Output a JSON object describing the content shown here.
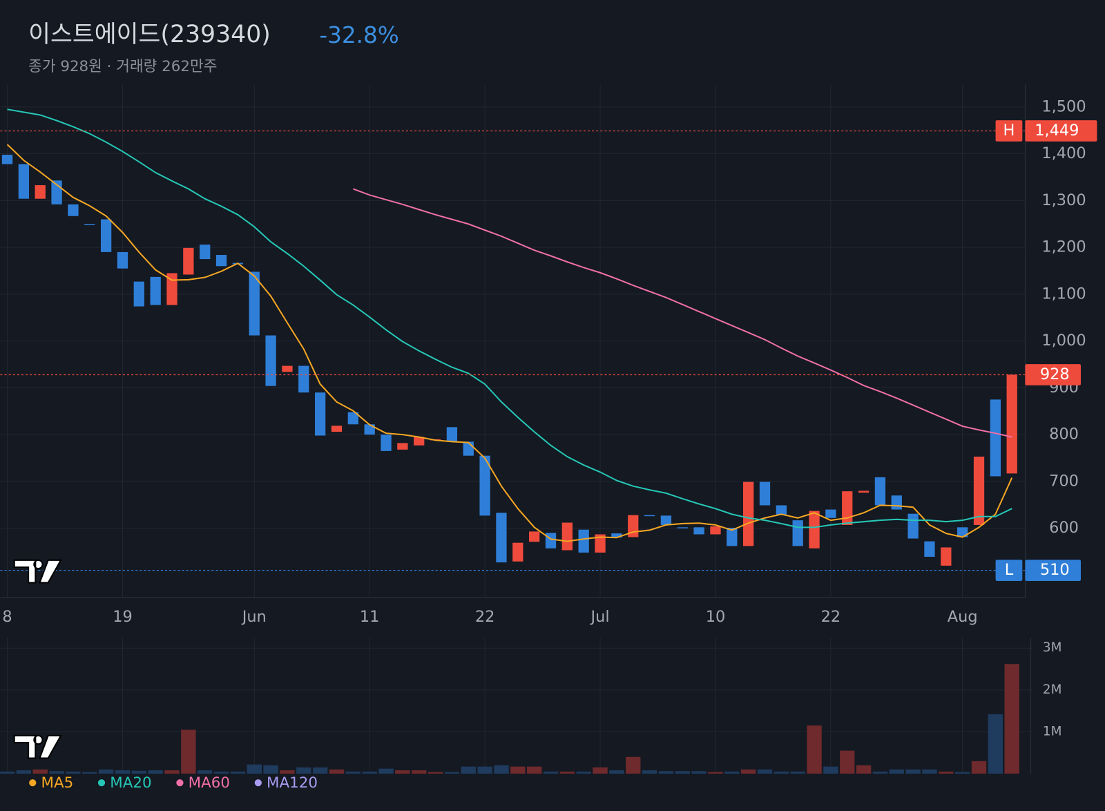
{
  "header": {
    "title": "이스트에이드(239340)",
    "change": "-32.8%",
    "subtitle": "종가 928원 · 거래량 262만주"
  },
  "chart_data": {
    "type": "candlestick",
    "categories": [
      "8",
      null,
      null,
      null,
      null,
      null,
      null,
      "19",
      null,
      null,
      null,
      null,
      null,
      null,
      null,
      "Jun",
      null,
      null,
      null,
      null,
      null,
      null,
      "11",
      null,
      null,
      null,
      null,
      null,
      null,
      "22",
      null,
      null,
      null,
      null,
      null,
      null,
      "Jul",
      null,
      null,
      null,
      null,
      null,
      null,
      "10",
      null,
      null,
      null,
      null,
      null,
      null,
      "22",
      null,
      null,
      null,
      null,
      null,
      null,
      null,
      "Aug",
      null,
      null,
      null
    ],
    "open": [
      1398,
      1378,
      1304,
      1343,
      1292,
      1250,
      1260,
      1190,
      1127,
      1137,
      1077,
      1142,
      1206,
      1184,
      1167,
      1148,
      1012,
      934,
      947,
      890,
      806,
      848,
      822,
      800,
      768,
      777,
      788,
      816,
      785,
      755,
      633,
      529,
      571,
      590,
      553,
      597,
      548,
      589,
      581,
      628,
      627,
      602,
      602,
      587,
      601,
      562,
      699,
      649,
      617,
      557,
      640,
      607,
      676,
      709,
      670,
      631,
      572,
      520,
      602,
      607,
      875,
      717
    ],
    "high": {
      "tag": "H",
      "value": 1449,
      "label": "1,449"
    },
    "low": {
      "tag": "L",
      "value": 510
    },
    "close": [
      1378,
      1304,
      1333,
      1292,
      1267,
      1248,
      1190,
      1155,
      1074,
      1077,
      1145,
      1199,
      1175,
      1160,
      1164,
      1012,
      904,
      947,
      890,
      798,
      819,
      822,
      800,
      765,
      782,
      795,
      790,
      785,
      755,
      627,
      527,
      569,
      593,
      557,
      612,
      548,
      587,
      580,
      628,
      626,
      607,
      601,
      587,
      604,
      562,
      699,
      649,
      628,
      562,
      637,
      622,
      679,
      680,
      649,
      640,
      578,
      539,
      559,
      581,
      753,
      711,
      928
    ],
    "volume": [
      50000,
      80000,
      100000,
      60000,
      50000,
      40000,
      100000,
      80000,
      70000,
      80000,
      80000,
      1050000,
      80000,
      50000,
      50000,
      220000,
      200000,
      80000,
      150000,
      150000,
      100000,
      50000,
      50000,
      120000,
      80000,
      80000,
      40000,
      40000,
      170000,
      170000,
      200000,
      170000,
      170000,
      50000,
      50000,
      50000,
      150000,
      80000,
      400000,
      80000,
      60000,
      60000,
      60000,
      40000,
      50000,
      100000,
      100000,
      50000,
      50000,
      1150000,
      170000,
      550000,
      200000,
      50000,
      100000,
      100000,
      100000,
      50000,
      40000,
      300000,
      1420000,
      2620000
    ],
    "up_color": "#ef4b3c",
    "down_color": "#2f7fd8",
    "up_volume_color": "#6e2a2c",
    "down_volume_color": "#1f3b5e",
    "series": [
      {
        "name": "MA5",
        "color": "#f5a623",
        "values": [
          1420,
          1386,
          1361,
          1334,
          1307,
          1289,
          1267,
          1232,
          1190,
          1152,
          1130,
          1131,
          1136,
          1149,
          1166,
          1139,
          1096,
          1039,
          983,
          908,
          870,
          851,
          821,
          803,
          800,
          795,
          788,
          785,
          783,
          750,
          690,
          642,
          602,
          577,
          572,
          577,
          581,
          580,
          592,
          596,
          607,
          610,
          611,
          607,
          596,
          611,
          622,
          630,
          622,
          633,
          617,
          622,
          633,
          649,
          648,
          645,
          607,
          589,
          581,
          602,
          630,
          708
        ]
      },
      {
        "name": "MA20",
        "color": "#26c6b5",
        "values": [
          1495,
          1489,
          1483,
          1471,
          1458,
          1443,
          1425,
          1405,
          1383,
          1360,
          1342,
          1325,
          1304,
          1288,
          1270,
          1244,
          1212,
          1187,
          1160,
          1130,
          1099,
          1077,
          1051,
          1024,
          999,
          979,
          961,
          944,
          931,
          908,
          870,
          837,
          806,
          777,
          753,
          735,
          720,
          702,
          690,
          682,
          675,
          663,
          652,
          642,
          630,
          622,
          617,
          610,
          602,
          602,
          607,
          611,
          614,
          617,
          619,
          617,
          617,
          614,
          617,
          625,
          625,
          642
        ]
      },
      {
        "name": "MA60",
        "color": "#f06fa8",
        "values": [
          null,
          null,
          null,
          null,
          null,
          null,
          null,
          null,
          null,
          null,
          null,
          null,
          null,
          null,
          null,
          null,
          null,
          null,
          null,
          null,
          null,
          1325,
          1312,
          1302,
          1292,
          1281,
          1270,
          1260,
          1250,
          1237,
          1224,
          1209,
          1194,
          1182,
          1169,
          1157,
          1146,
          1133,
          1119,
          1106,
          1093,
          1078,
          1063,
          1048,
          1033,
          1018,
          1003,
          985,
          968,
          953,
          938,
          922,
          905,
          892,
          878,
          863,
          848,
          833,
          818,
          810,
          803,
          795
        ]
      },
      {
        "name": "MA120",
        "color": "#a99bf0"
      }
    ],
    "ylim": [
      452,
      1548
    ],
    "yticks": [
      600,
      700,
      800,
      900,
      {
        "value": 1000,
        "label": "1,000"
      },
      {
        "value": 1100,
        "label": "1,100"
      },
      {
        "value": 1200,
        "label": "1,200"
      },
      {
        "value": 1300,
        "label": "1,300"
      },
      {
        "value": 1400,
        "label": "1,400"
      },
      {
        "value": 1500,
        "label": "1,500"
      }
    ],
    "volume_ylim": [
      0,
      3250000
    ],
    "volume_yticks": [
      {
        "value": 1000000,
        "label": "1M"
      },
      {
        "value": 2000000,
        "label": "2M"
      },
      {
        "value": 3000000,
        "label": "3M"
      }
    ],
    "last_price": 928,
    "grid": true
  }
}
